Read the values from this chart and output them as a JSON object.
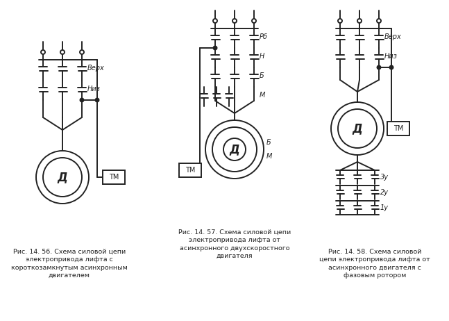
{
  "bg": "#ffffff",
  "lc": "#222222",
  "lw": 1.4,
  "fig_w": 6.47,
  "fig_h": 4.62,
  "caption1": "Рис. 14. 56. Схема силовой цепи\nэлектропривода лифта с\nкороткозамкнутым асинхронным\nдвигателем",
  "caption2": "Рис. 14. 57. Схема силовой цепи\nэлектропривода лифта от\nасинхронного двухскоростного\nдвигателя",
  "caption3": "Рис. 14. 58. Схема силовой\nцепи электропривода лифта от\nасинхронного двигателя с\nфазовым ротором",
  "lv_verh": "Верх",
  "lv_niz": "Низ",
  "lv_D": "Д",
  "lv_TM": "ТМ",
  "lv_Rb": "Рб",
  "lv_N": "Н",
  "lv_Bn": "Б",
  "lv_M": "М",
  "lv_1u": "1у",
  "lv_2u": "2у",
  "lv_3u": "3у"
}
